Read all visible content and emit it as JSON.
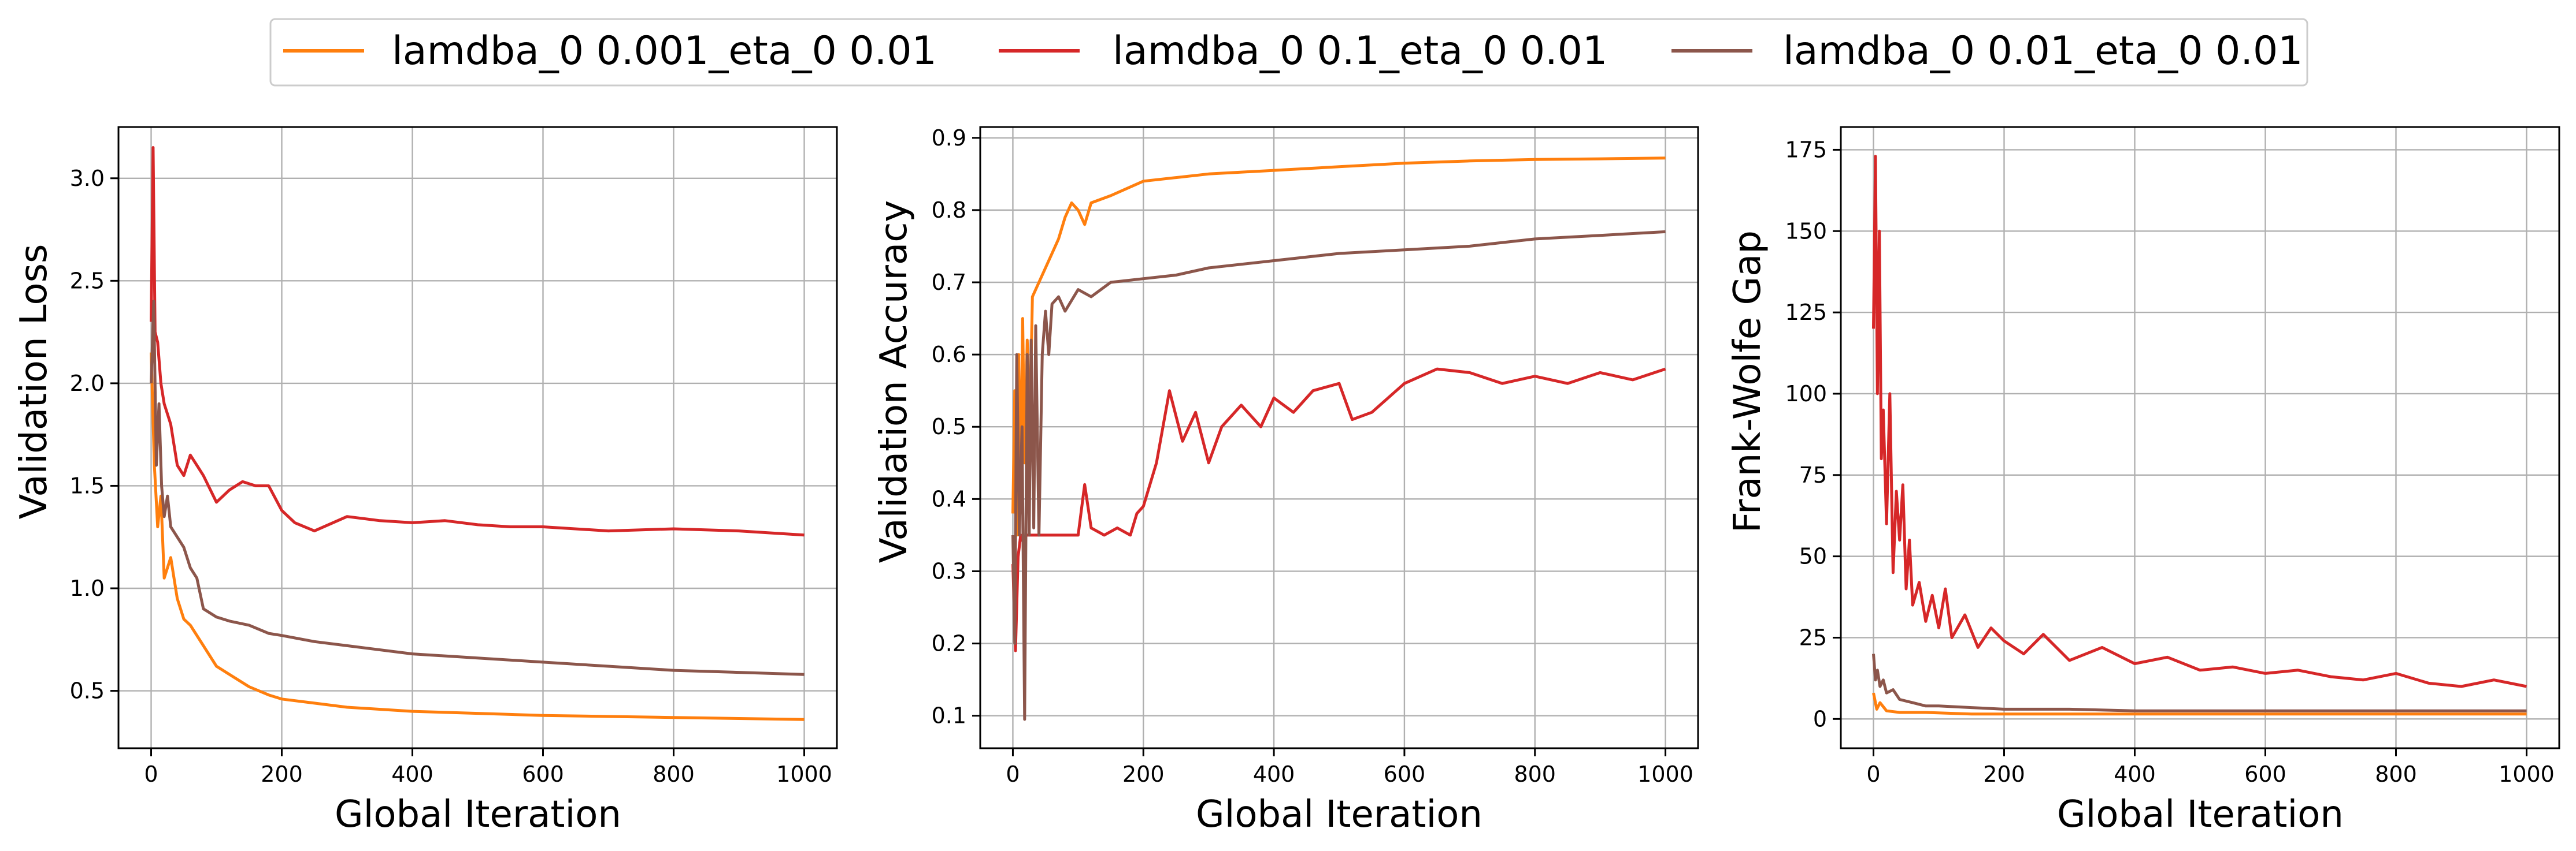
{
  "legend": {
    "entries": [
      {
        "label": "lamdba_0 0.001_eta_0 0.01",
        "color": "#ff7f0e"
      },
      {
        "label": "lamdba_0 0.1_eta_0 0.01",
        "color": "#d62728"
      },
      {
        "label": "lamdba_0 0.01_eta_0 0.01",
        "color": "#8c564b"
      }
    ],
    "placement": "top-center"
  },
  "chart_data": [
    {
      "type": "line",
      "xlabel": "Global Iteration",
      "ylabel": "Validation Loss",
      "xlim": [
        -50,
        1050
      ],
      "ylim": [
        0.22,
        3.25
      ],
      "xticks": [
        0,
        200,
        400,
        600,
        800,
        1000
      ],
      "yticks": [
        0.5,
        1.0,
        1.5,
        2.0,
        2.5,
        3.0
      ],
      "ytick_labels": [
        "0.5",
        "1.0",
        "1.5",
        "2.0",
        "2.5",
        "3.0"
      ],
      "grid": true,
      "series": [
        {
          "name": "lamdba_0 0.001_eta_0 0.01",
          "color": "#ff7f0e",
          "x": [
            0,
            5,
            10,
            15,
            20,
            30,
            40,
            50,
            60,
            80,
            100,
            120,
            150,
            180,
            200,
            250,
            300,
            400,
            500,
            600,
            700,
            800,
            900,
            1000
          ],
          "y": [
            2.15,
            1.6,
            1.3,
            1.45,
            1.05,
            1.15,
            0.95,
            0.85,
            0.82,
            0.72,
            0.62,
            0.58,
            0.52,
            0.48,
            0.46,
            0.44,
            0.42,
            0.4,
            0.39,
            0.38,
            0.375,
            0.37,
            0.365,
            0.36
          ]
        },
        {
          "name": "lamdba_0 0.1_eta_0 0.01",
          "color": "#d62728",
          "x": [
            0,
            3,
            6,
            10,
            15,
            20,
            25,
            30,
            40,
            50,
            60,
            70,
            80,
            100,
            120,
            140,
            160,
            180,
            200,
            220,
            250,
            300,
            350,
            400,
            450,
            500,
            550,
            600,
            700,
            800,
            900,
            1000
          ],
          "y": [
            2.3,
            3.15,
            2.25,
            2.2,
            2.0,
            1.9,
            1.85,
            1.8,
            1.6,
            1.55,
            1.65,
            1.6,
            1.55,
            1.42,
            1.48,
            1.52,
            1.5,
            1.5,
            1.38,
            1.32,
            1.28,
            1.35,
            1.33,
            1.32,
            1.33,
            1.31,
            1.3,
            1.3,
            1.28,
            1.29,
            1.28,
            1.26
          ]
        },
        {
          "name": "lamdba_0 0.01_eta_0 0.01",
          "color": "#8c564b",
          "x": [
            0,
            4,
            8,
            12,
            16,
            20,
            25,
            30,
            40,
            50,
            60,
            70,
            80,
            90,
            100,
            120,
            150,
            180,
            200,
            250,
            300,
            400,
            500,
            600,
            700,
            800,
            900,
            1000
          ],
          "y": [
            2.0,
            2.4,
            1.6,
            1.9,
            1.5,
            1.35,
            1.45,
            1.3,
            1.25,
            1.2,
            1.1,
            1.05,
            0.9,
            0.88,
            0.86,
            0.84,
            0.82,
            0.78,
            0.77,
            0.74,
            0.72,
            0.68,
            0.66,
            0.64,
            0.62,
            0.6,
            0.59,
            0.58
          ]
        }
      ]
    },
    {
      "type": "line",
      "xlabel": "Global Iteration",
      "ylabel": "Validation Accuracy",
      "xlim": [
        -50,
        1050
      ],
      "ylim": [
        0.055,
        0.915
      ],
      "xticks": [
        0,
        200,
        400,
        600,
        800,
        1000
      ],
      "yticks": [
        0.1,
        0.2,
        0.3,
        0.4,
        0.5,
        0.6,
        0.7,
        0.8,
        0.9
      ],
      "ytick_labels": [
        "0.1",
        "0.2",
        "0.3",
        "0.4",
        "0.5",
        "0.6",
        "0.7",
        "0.8",
        "0.9"
      ],
      "grid": true,
      "series": [
        {
          "name": "lamdba_0 0.001_eta_0 0.01",
          "color": "#ff7f0e",
          "x": [
            0,
            3,
            6,
            9,
            12,
            15,
            18,
            22,
            26,
            30,
            40,
            50,
            60,
            70,
            80,
            90,
            100,
            110,
            120,
            150,
            200,
            250,
            300,
            400,
            500,
            600,
            700,
            800,
            900,
            1000
          ],
          "y": [
            0.38,
            0.55,
            0.35,
            0.6,
            0.4,
            0.65,
            0.45,
            0.62,
            0.5,
            0.68,
            0.7,
            0.72,
            0.74,
            0.76,
            0.79,
            0.81,
            0.8,
            0.78,
            0.81,
            0.82,
            0.84,
            0.845,
            0.85,
            0.855,
            0.86,
            0.865,
            0.868,
            0.87,
            0.871,
            0.872
          ]
        },
        {
          "name": "lamdba_0 0.1_eta_0 0.01",
          "color": "#d62728",
          "x": [
            0,
            4,
            8,
            12,
            16,
            20,
            30,
            50,
            80,
            100,
            110,
            120,
            140,
            160,
            180,
            190,
            200,
            220,
            240,
            260,
            280,
            300,
            320,
            350,
            380,
            400,
            430,
            460,
            500,
            520,
            550,
            600,
            650,
            700,
            750,
            800,
            850,
            900,
            950,
            1000
          ],
          "y": [
            0.31,
            0.19,
            0.32,
            0.35,
            0.34,
            0.35,
            0.35,
            0.35,
            0.35,
            0.35,
            0.42,
            0.36,
            0.35,
            0.36,
            0.35,
            0.38,
            0.39,
            0.45,
            0.55,
            0.48,
            0.52,
            0.45,
            0.5,
            0.53,
            0.5,
            0.54,
            0.52,
            0.55,
            0.56,
            0.51,
            0.52,
            0.56,
            0.58,
            0.575,
            0.56,
            0.57,
            0.56,
            0.575,
            0.565,
            0.58
          ]
        },
        {
          "name": "lamdba_0 0.01_eta_0 0.01",
          "color": "#8c564b",
          "x": [
            0,
            3,
            6,
            10,
            14,
            18,
            20,
            22,
            25,
            28,
            32,
            35,
            40,
            45,
            50,
            55,
            60,
            70,
            80,
            100,
            120,
            150,
            200,
            250,
            300,
            400,
            500,
            600,
            700,
            800,
            900,
            1000
          ],
          "y": [
            0.35,
            0.2,
            0.6,
            0.35,
            0.5,
            0.095,
            0.35,
            0.6,
            0.35,
            0.62,
            0.36,
            0.64,
            0.35,
            0.6,
            0.66,
            0.6,
            0.67,
            0.68,
            0.66,
            0.69,
            0.68,
            0.7,
            0.705,
            0.71,
            0.72,
            0.73,
            0.74,
            0.745,
            0.75,
            0.76,
            0.765,
            0.77
          ]
        }
      ]
    },
    {
      "type": "line",
      "xlabel": "Global Iteration",
      "ylabel": "Frank-Wolfe Gap",
      "xlim": [
        -50,
        1050
      ],
      "ylim": [
        -9,
        182
      ],
      "xticks": [
        0,
        200,
        400,
        600,
        800,
        1000
      ],
      "yticks": [
        0,
        25,
        50,
        75,
        100,
        125,
        150,
        175
      ],
      "ytick_labels": [
        "0",
        "25",
        "50",
        "75",
        "100",
        "125",
        "150",
        "175"
      ],
      "grid": true,
      "series": [
        {
          "name": "lamdba_0 0.001_eta_0 0.01",
          "color": "#ff7f0e",
          "x": [
            0,
            5,
            10,
            20,
            40,
            80,
            150,
            300,
            600,
            1000
          ],
          "y": [
            8,
            3,
            5,
            2.5,
            2,
            2,
            1.5,
            1.5,
            1.5,
            1.5
          ]
        },
        {
          "name": "lamdba_0 0.1_eta_0 0.01",
          "color": "#d62728",
          "x": [
            0,
            3,
            6,
            9,
            12,
            15,
            20,
            25,
            30,
            35,
            40,
            45,
            50,
            55,
            60,
            70,
            80,
            90,
            100,
            110,
            120,
            140,
            160,
            180,
            200,
            230,
            260,
            300,
            350,
            400,
            450,
            500,
            550,
            600,
            650,
            700,
            750,
            800,
            850,
            900,
            950,
            1000
          ],
          "y": [
            120,
            173,
            100,
            150,
            80,
            95,
            60,
            100,
            45,
            70,
            55,
            72,
            40,
            55,
            35,
            42,
            30,
            38,
            28,
            40,
            25,
            32,
            22,
            28,
            24,
            20,
            26,
            18,
            22,
            17,
            19,
            15,
            16,
            14,
            15,
            13,
            12,
            14,
            11,
            10,
            12,
            10
          ]
        },
        {
          "name": "lamdba_0 0.01_eta_0 0.01",
          "color": "#8c564b",
          "x": [
            0,
            3,
            6,
            10,
            15,
            20,
            30,
            40,
            60,
            80,
            100,
            150,
            200,
            300,
            400,
            600,
            800,
            1000
          ],
          "y": [
            20,
            12,
            15,
            10,
            12,
            8,
            9,
            6,
            5,
            4,
            4,
            3.5,
            3,
            3,
            2.5,
            2.5,
            2.5,
            2.5
          ]
        }
      ]
    }
  ]
}
